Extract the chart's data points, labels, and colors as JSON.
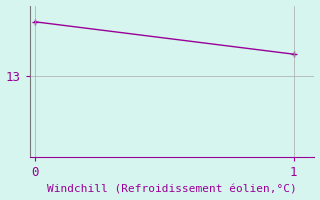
{
  "x": [
    0,
    1
  ],
  "y": [
    14.0,
    13.4
  ],
  "xlim": [
    -0.02,
    1.08
  ],
  "ylim": [
    11.5,
    14.3
  ],
  "xticks": [
    0,
    1
  ],
  "yticks": [
    13
  ],
  "xlabel": "Windchill (Refroidissement éolien,°C)",
  "line_color": "#990099",
  "spine_color": "#777777",
  "marker": "+",
  "marker_size": 5,
  "background_color": "#d6f5ee",
  "grid_color": "#aaaaaa",
  "font_family": "monospace",
  "xlabel_fontsize": 8,
  "ytick_fontsize": 9,
  "xtick_fontsize": 9,
  "line_width": 1.0
}
